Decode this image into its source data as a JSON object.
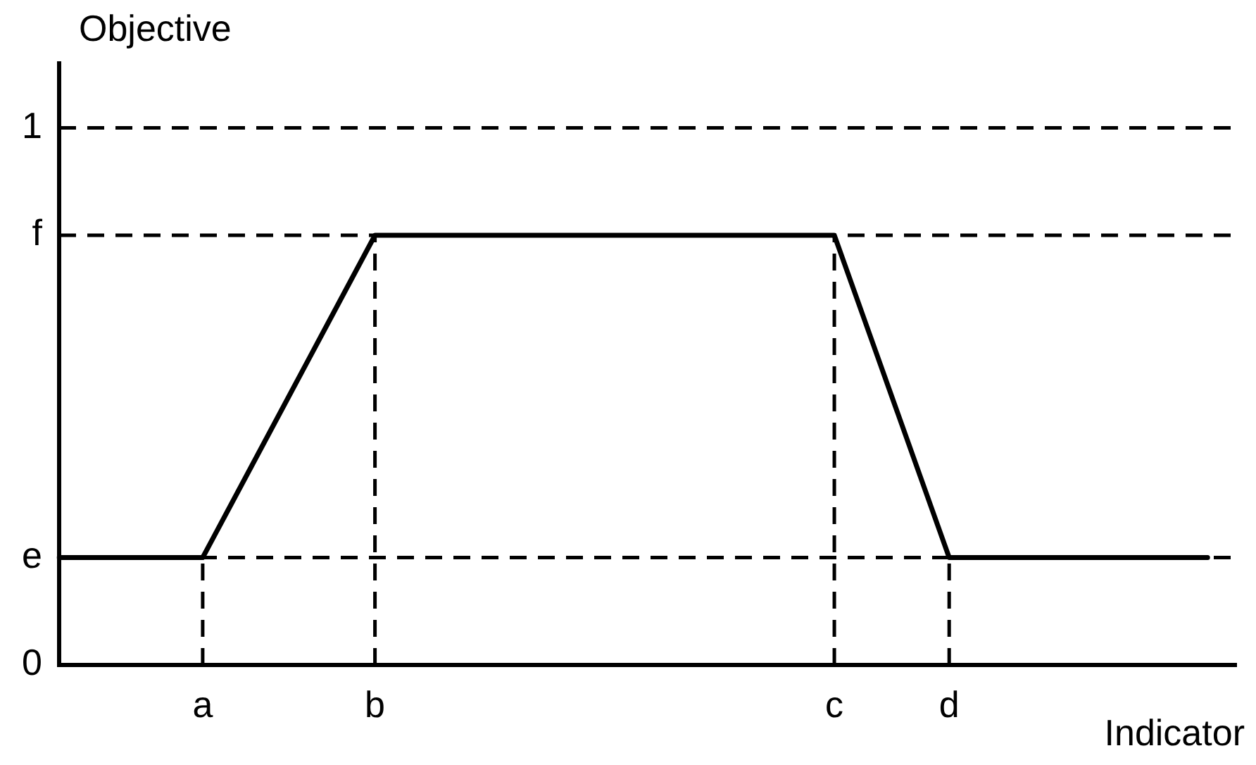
{
  "chart_data": {
    "type": "line",
    "xlabel": "Indicator",
    "ylabel": "Objective",
    "categories": [
      null,
      null,
      null,
      null,
      null,
      "a",
      null,
      null,
      null,
      null,
      null,
      "b",
      null,
      null,
      null,
      null,
      null,
      null,
      null,
      null,
      null,
      null,
      null,
      null,
      null,
      null,
      null,
      "c",
      null,
      null,
      null,
      "d",
      null,
      null,
      null,
      null,
      null,
      null,
      null,
      null,
      null,
      null
    ],
    "series": [
      {
        "color": "#000000",
        "values": [
          0.2,
          0.2,
          0.2,
          0.2,
          0.2,
          0.2,
          0.3,
          0.4,
          0.5,
          0.6,
          0.7,
          0.8,
          0.8,
          0.8,
          0.8,
          0.8,
          0.8,
          0.8,
          0.8,
          0.8,
          0.8,
          0.8,
          0.8,
          0.8,
          0.8,
          0.8,
          0.8,
          0.8,
          0.65,
          0.5,
          0.35,
          0.2,
          0.2,
          0.2,
          0.2,
          0.2,
          0.2,
          0.2,
          0.2,
          0.2,
          0.2,
          null
        ]
      }
    ],
    "ylim": [
      0,
      1.12
    ],
    "yticks": [
      0,
      {
        "value": 0.2,
        "label": "e"
      },
      {
        "value": 0.8,
        "label": "f"
      },
      1
    ],
    "ref_lines": [
      {
        "axis": "y",
        "value": 1,
        "line_style": "dashed"
      },
      {
        "axis": "y",
        "value": 0.8,
        "line_style": "dashed"
      },
      {
        "axis": "y",
        "value": 0.2,
        "line_style": "dashed"
      },
      {
        "axis": "x",
        "value": "a",
        "line_style": "dashed"
      },
      {
        "axis": "x",
        "value": "b",
        "line_style": "dashed"
      },
      {
        "axis": "x",
        "value": "c",
        "line_style": "dashed"
      },
      {
        "axis": "x",
        "value": "d",
        "line_style": "dashed"
      }
    ],
    "grid": false,
    "legend": false,
    "marker": "none",
    "line_style": "solid"
  }
}
